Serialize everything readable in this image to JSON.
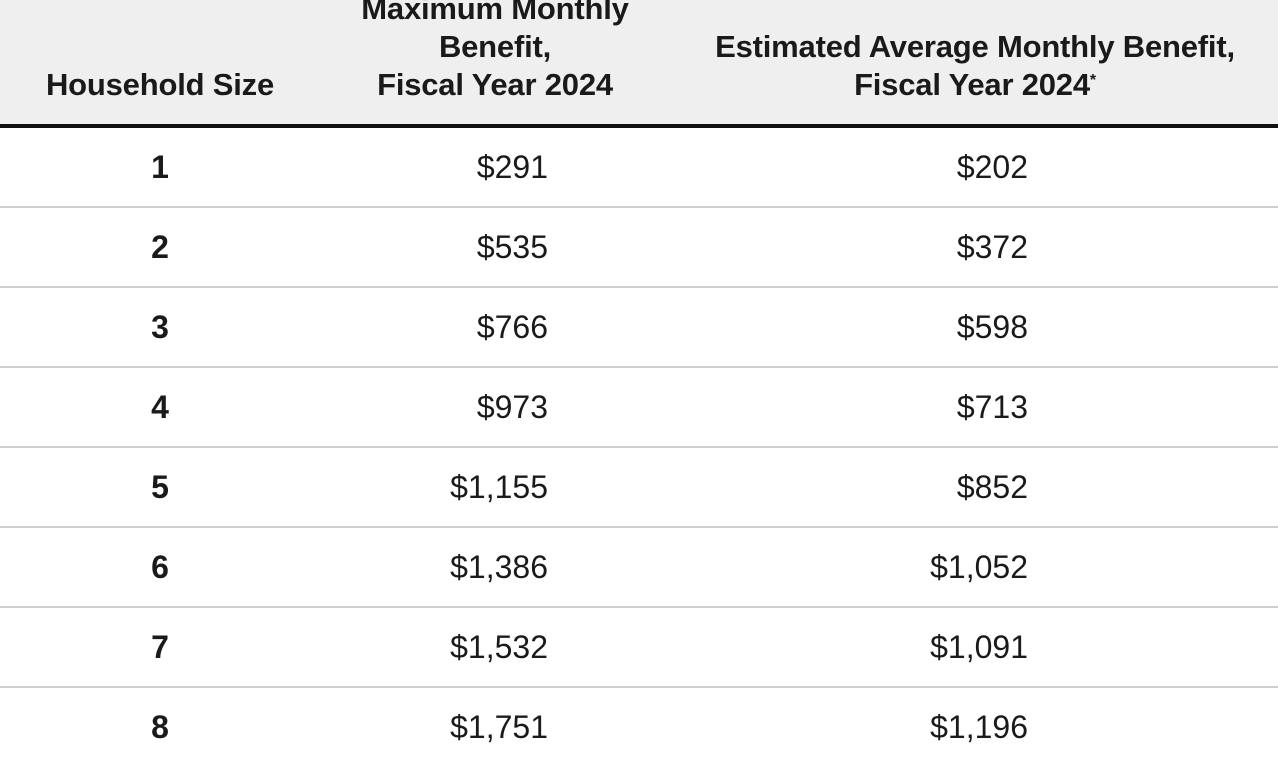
{
  "table": {
    "headers": {
      "household_size": "Household Size",
      "max_benefit": [
        "Maximum Monthly",
        "Benefit,",
        "Fiscal Year 2024"
      ],
      "avg_benefit": [
        "Estimated Average Monthly Benefit,",
        "Fiscal Year 2024"
      ],
      "avg_benefit_footnote_mark": "*"
    },
    "rows": [
      {
        "size": "1",
        "max": "$291",
        "avg": "$202"
      },
      {
        "size": "2",
        "max": "$535",
        "avg": "$372"
      },
      {
        "size": "3",
        "max": "$766",
        "avg": "$598"
      },
      {
        "size": "4",
        "max": "$973",
        "avg": "$713"
      },
      {
        "size": "5",
        "max": "$1,155",
        "avg": "$852"
      },
      {
        "size": "6",
        "max": "$1,386",
        "avg": "$1,052"
      },
      {
        "size": "7",
        "max": "$1,532",
        "avg": "$1,091"
      },
      {
        "size": "8",
        "max": "$1,751",
        "avg": "$1,196"
      }
    ]
  },
  "colors": {
    "header_background": "#efefef",
    "header_rule": "#111111",
    "row_divider": "#cfcfcf",
    "text": "#1a1a1a"
  }
}
